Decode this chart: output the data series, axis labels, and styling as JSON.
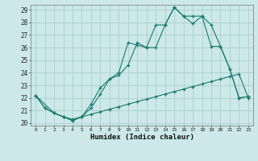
{
  "xlabel": "Humidex (Indice chaleur)",
  "bg_color": "#cce8e8",
  "grid_color": "#aad0cc",
  "line_color": "#1a7a6e",
  "xlim": [
    -0.5,
    23.5
  ],
  "ylim": [
    19.8,
    29.4
  ],
  "xticks": [
    0,
    1,
    2,
    3,
    4,
    5,
    6,
    7,
    8,
    9,
    10,
    11,
    12,
    13,
    14,
    15,
    16,
    17,
    18,
    19,
    20,
    21,
    22,
    23
  ],
  "yticks": [
    20,
    21,
    22,
    23,
    24,
    25,
    26,
    27,
    28,
    29
  ],
  "line1_x": [
    0,
    1,
    2,
    3,
    4,
    5,
    6,
    7,
    8,
    9,
    10,
    11,
    12,
    13,
    14,
    15,
    16,
    17,
    18,
    19,
    20,
    21,
    22,
    23
  ],
  "line1_y": [
    22.2,
    21.2,
    20.8,
    20.5,
    20.3,
    20.5,
    20.7,
    20.9,
    21.1,
    21.3,
    21.5,
    21.7,
    21.9,
    22.1,
    22.3,
    22.5,
    22.7,
    22.9,
    23.1,
    23.3,
    23.5,
    23.7,
    23.9,
    22.0
  ],
  "line2_x": [
    0,
    1,
    2,
    3,
    4,
    5,
    6,
    7,
    8,
    9,
    10,
    11,
    12,
    13,
    14,
    15,
    16,
    17,
    18,
    19,
    20,
    21,
    22,
    23
  ],
  "line2_y": [
    22.2,
    21.2,
    20.8,
    20.5,
    20.2,
    20.5,
    21.2,
    22.3,
    23.5,
    24.0,
    26.4,
    26.2,
    26.0,
    27.8,
    27.8,
    29.2,
    28.5,
    27.9,
    28.5,
    26.1,
    26.1,
    24.3,
    22.0,
    22.1
  ],
  "line3_x": [
    0,
    2,
    3,
    4,
    5,
    6,
    7,
    8,
    9,
    10,
    11,
    12,
    13,
    14,
    15,
    16,
    17,
    18,
    19,
    20,
    21,
    22,
    23
  ],
  "line3_y": [
    22.2,
    20.8,
    20.5,
    20.2,
    20.5,
    21.5,
    22.8,
    23.5,
    23.8,
    24.6,
    26.4,
    26.0,
    26.0,
    27.8,
    29.2,
    28.5,
    28.5,
    28.5,
    27.8,
    26.1,
    24.3,
    22.0,
    22.1
  ]
}
